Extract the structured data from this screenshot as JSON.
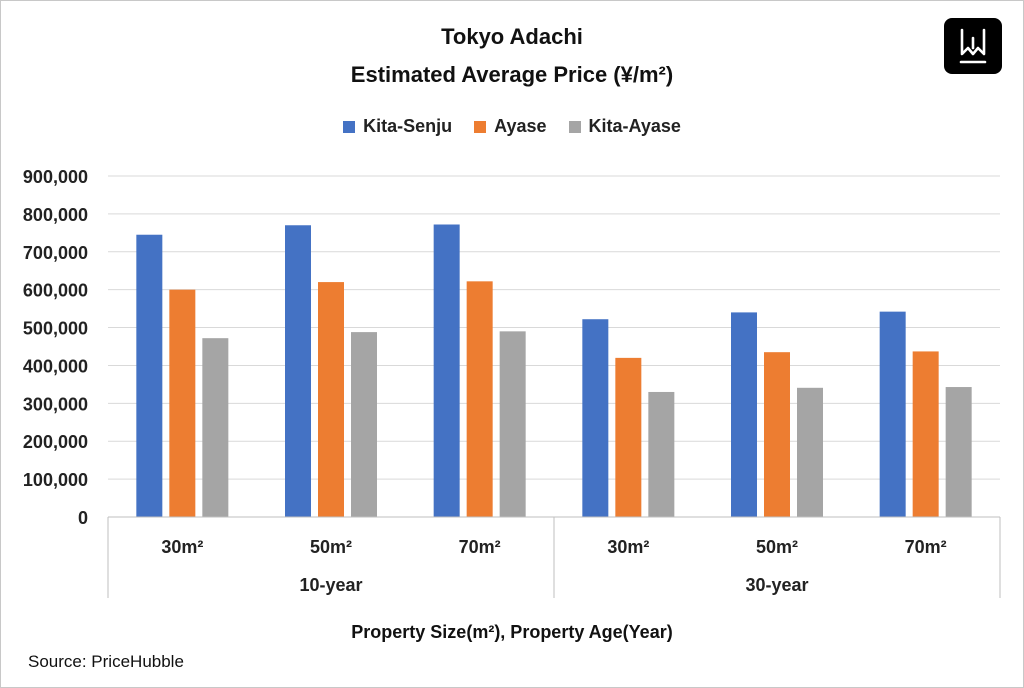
{
  "chart_data": {
    "type": "bar",
    "title": "Tokyo Adachi",
    "subtitle": "Estimated Average Price (¥/m²)",
    "xlabel": "Property Size(m²), Property Age(Year)",
    "ylabel": "",
    "ylim": [
      0,
      900000
    ],
    "yticks": [
      "0",
      "100,000",
      "200,000",
      "300,000",
      "400,000",
      "500,000",
      "600,000",
      "700,000",
      "800,000",
      "900,000"
    ],
    "categories": [
      "30m²",
      "50m²",
      "70m²",
      "30m²",
      "50m²",
      "70m²"
    ],
    "groups": [
      {
        "label": "10-year",
        "span": 3
      },
      {
        "label": "30-year",
        "span": 3
      }
    ],
    "series": [
      {
        "name": "Kita-Senju",
        "color": "#4472C4",
        "values": [
          745000,
          770000,
          772000,
          522000,
          540000,
          542000
        ]
      },
      {
        "name": "Ayase",
        "color": "#ED7D31",
        "values": [
          600000,
          620000,
          622000,
          420000,
          435000,
          437000
        ]
      },
      {
        "name": "Kita-Ayase",
        "color": "#A5A5A5",
        "values": [
          472000,
          488000,
          490000,
          330000,
          341000,
          343000
        ]
      }
    ],
    "grid": true,
    "legend": "top-center"
  },
  "source": "Source: PriceHubble",
  "logo": {
    "icon": "w-logo-icon"
  }
}
